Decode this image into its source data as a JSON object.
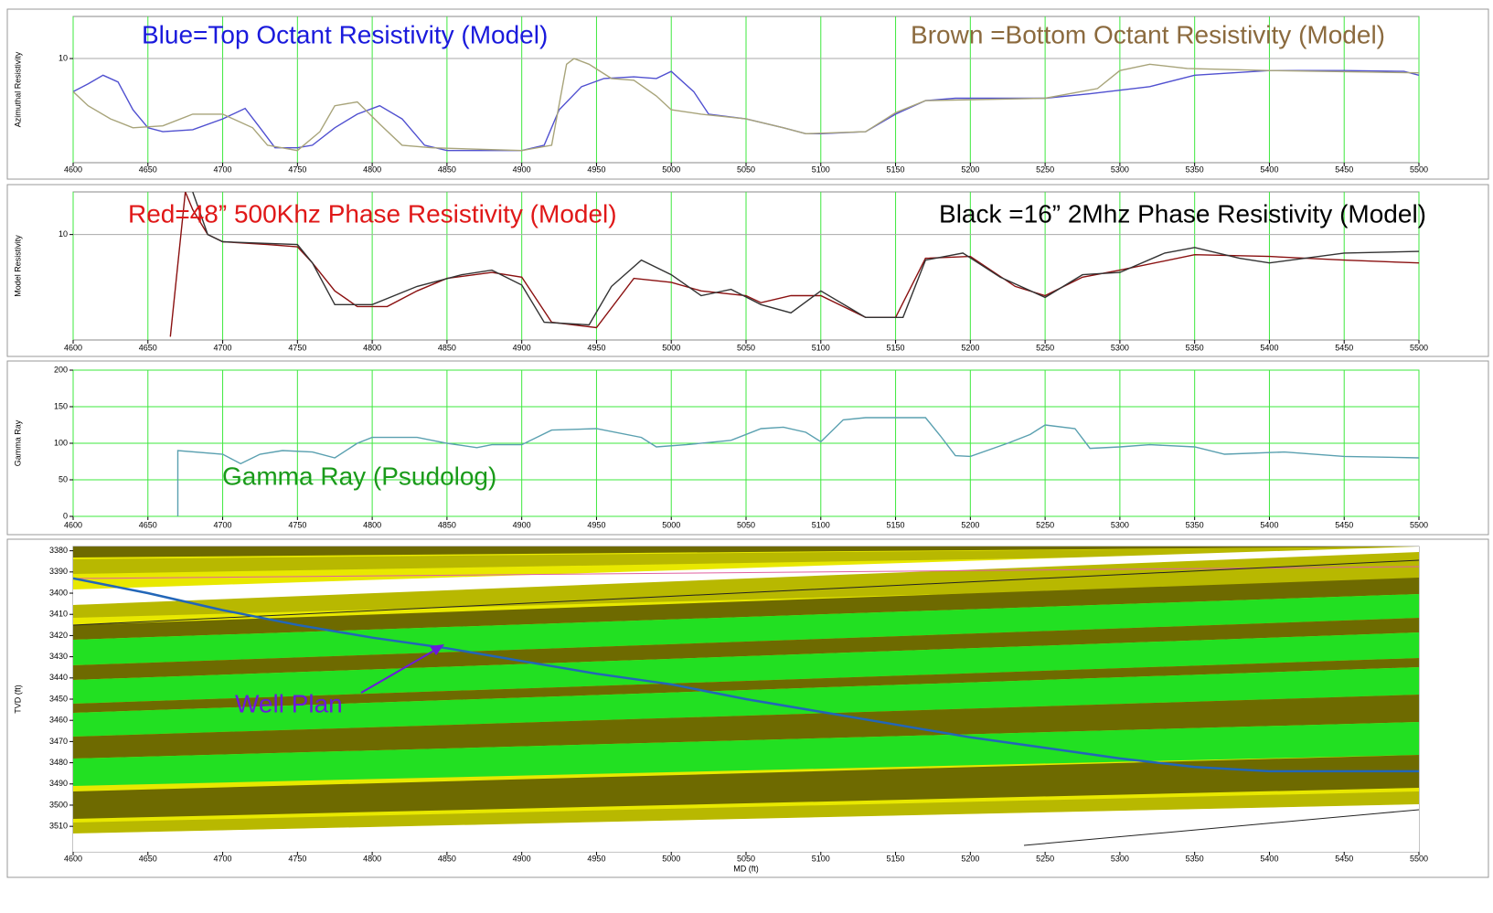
{
  "chart_data": [
    {
      "type": "line",
      "ylabel": "Azimuthal Resistivity",
      "log": true,
      "xlim": [
        4600,
        5500
      ],
      "xticks": [
        4600,
        4650,
        4700,
        4750,
        4800,
        4850,
        4900,
        4950,
        5000,
        5050,
        5100,
        5150,
        5200,
        5250,
        5300,
        5350,
        5400,
        5450,
        5500
      ],
      "ylim": [
        1.8,
        20
      ],
      "yticks": [
        10
      ],
      "annotations": [
        {
          "text": "Blue=Top Octant Resistivity (Model)",
          "color": "#1a1adc"
        },
        {
          "text": "Brown =Bottom Octant Resistivity (Model)",
          "color": "#8b6a3e"
        }
      ],
      "series": [
        {
          "color": "#5050d0",
          "x": [
            4600,
            4610,
            4620,
            4630,
            4640,
            4650,
            4660,
            4680,
            4700,
            4715,
            4725,
            4735,
            4750,
            4760,
            4775,
            4790,
            4805,
            4820,
            4835,
            4850,
            4900,
            4915,
            4925,
            4940,
            4955,
            4975,
            4990,
            5000,
            5015,
            5025,
            5050,
            5075,
            5090,
            5100,
            5130,
            5150,
            5170,
            5190,
            5250,
            5280,
            5320,
            5350,
            5400,
            5450,
            5490,
            5500
          ],
          "values": [
            5.8,
            6.6,
            7.6,
            6.8,
            4.3,
            3.2,
            3.0,
            3.1,
            3.7,
            4.4,
            3.2,
            2.3,
            2.3,
            2.4,
            3.2,
            4.0,
            4.6,
            3.7,
            2.4,
            2.2,
            2.2,
            2.4,
            4.3,
            6.3,
            7.2,
            7.4,
            7.2,
            8.1,
            5.8,
            4.0,
            3.7,
            3.2,
            2.9,
            2.9,
            3.0,
            4.0,
            5.0,
            5.2,
            5.2,
            5.6,
            6.3,
            7.6,
            8.2,
            8.2,
            8.1,
            7.6
          ]
        },
        {
          "color": "#a8a47a",
          "x": [
            4600,
            4610,
            4625,
            4640,
            4660,
            4680,
            4700,
            4720,
            4730,
            4750,
            4765,
            4775,
            4790,
            4805,
            4820,
            4840,
            4900,
            4920,
            4930,
            4935,
            4945,
            4960,
            4975,
            4990,
            5000,
            5020,
            5050,
            5075,
            5090,
            5130,
            5150,
            5170,
            5250,
            5285,
            5300,
            5320,
            5345,
            5400,
            5500
          ],
          "values": [
            5.8,
            4.6,
            3.7,
            3.2,
            3.3,
            4.0,
            4.0,
            3.2,
            2.4,
            2.2,
            3.0,
            4.6,
            4.9,
            3.4,
            2.4,
            2.3,
            2.2,
            2.4,
            9.1,
            10.0,
            9.1,
            7.2,
            7.0,
            5.4,
            4.3,
            4.0,
            3.7,
            3.2,
            2.9,
            3.0,
            4.1,
            5.0,
            5.2,
            6.1,
            8.2,
            9.1,
            8.5,
            8.2,
            7.9
          ]
        }
      ]
    },
    {
      "type": "line",
      "ylabel": "Model Resistivity",
      "log": true,
      "xlim": [
        4600,
        5500
      ],
      "xticks": [
        4600,
        4650,
        4700,
        4750,
        4800,
        4850,
        4900,
        4950,
        5000,
        5050,
        5100,
        5150,
        5200,
        5250,
        5300,
        5350,
        5400,
        5450,
        5500
      ],
      "ylim": [
        1.8,
        20
      ],
      "yticks": [
        10
      ],
      "annotations": [
        {
          "text": "Red=48” 500Khz Phase Resistivity (Model)",
          "color": "#e01818"
        },
        {
          "text": "Black =16” 2Mhz Phase Resistivity (Model)",
          "color": "#000000"
        }
      ],
      "series": [
        {
          "color": "#8a1010",
          "x": [
            4665,
            4675,
            4680,
            4690,
            4700,
            4730,
            4750,
            4760,
            4775,
            4790,
            4810,
            4830,
            4850,
            4880,
            4900,
            4920,
            4950,
            4975,
            5000,
            5020,
            5050,
            5060,
            5080,
            5100,
            5130,
            5150,
            5170,
            5200,
            5230,
            5250,
            5275,
            5300,
            5350,
            5400,
            5450,
            5500
          ],
          "values": [
            1.9,
            20,
            15,
            10,
            8.9,
            8.5,
            8.2,
            6.3,
            4.0,
            3.1,
            3.1,
            4.0,
            4.9,
            5.4,
            5.0,
            2.4,
            2.2,
            4.9,
            4.6,
            4.0,
            3.7,
            3.3,
            3.7,
            3.7,
            2.6,
            2.6,
            6.8,
            7.0,
            4.3,
            3.7,
            5.0,
            5.6,
            7.2,
            7.0,
            6.6,
            6.3
          ]
        },
        {
          "color": "#333333",
          "x": [
            4680,
            4690,
            4700,
            4750,
            4760,
            4775,
            4800,
            4830,
            4860,
            4880,
            4900,
            4915,
            4945,
            4960,
            4980,
            5000,
            5020,
            5040,
            5060,
            5080,
            5100,
            5120,
            5130,
            5155,
            5170,
            5195,
            5220,
            5250,
            5275,
            5300,
            5330,
            5350,
            5380,
            5400,
            5450,
            5500
          ],
          "values": [
            20,
            10,
            8.9,
            8.5,
            6.3,
            3.2,
            3.2,
            4.3,
            5.2,
            5.6,
            4.4,
            2.4,
            2.3,
            4.3,
            6.6,
            5.2,
            3.7,
            4.1,
            3.2,
            2.8,
            4.0,
            3.0,
            2.6,
            2.6,
            6.6,
            7.4,
            5.0,
            3.6,
            5.2,
            5.4,
            7.4,
            8.1,
            6.8,
            6.3,
            7.4,
            7.6
          ]
        }
      ]
    },
    {
      "type": "line",
      "ylabel": "Gamma Ray",
      "log": false,
      "xlim": [
        4600,
        5500
      ],
      "xticks": [
        4600,
        4650,
        4700,
        4750,
        4800,
        4850,
        4900,
        4950,
        5000,
        5050,
        5100,
        5150,
        5200,
        5250,
        5300,
        5350,
        5400,
        5450,
        5500
      ],
      "ylim": [
        0,
        200
      ],
      "yticks": [
        0,
        50,
        100,
        150,
        200
      ],
      "annotations": [
        {
          "text": "Gamma Ray (Psudolog)",
          "color": "#1a9a1a"
        }
      ],
      "series": [
        {
          "color": "#5aa0b0",
          "x": [
            4670,
            4670,
            4700,
            4712,
            4725,
            4740,
            4760,
            4775,
            4790,
            4800,
            4830,
            4850,
            4870,
            4880,
            4900,
            4920,
            4950,
            4980,
            4990,
            5010,
            5040,
            5060,
            5075,
            5090,
            5100,
            5115,
            5130,
            5170,
            5180,
            5190,
            5200,
            5225,
            5240,
            5250,
            5270,
            5280,
            5300,
            5320,
            5350,
            5370,
            5410,
            5450,
            5500
          ],
          "values": [
            0,
            90,
            85,
            72,
            85,
            90,
            88,
            80,
            100,
            108,
            108,
            100,
            94,
            98,
            98,
            118,
            120,
            108,
            95,
            98,
            104,
            120,
            122,
            115,
            102,
            132,
            135,
            135,
            110,
            83,
            82,
            100,
            112,
            125,
            120,
            93,
            95,
            98,
            95,
            85,
            88,
            82,
            80
          ]
        }
      ]
    },
    {
      "type": "line",
      "ylabel": "TVD (ft)",
      "xlabel": "MD (ft)",
      "log": false,
      "y_inverted": true,
      "xlim": [
        4600,
        5500
      ],
      "xticks": [
        4600,
        4650,
        4700,
        4750,
        4800,
        4850,
        4900,
        4950,
        5000,
        5050,
        5100,
        5150,
        5200,
        5250,
        5300,
        5350,
        5400,
        5450,
        5500
      ],
      "ylim": [
        3378,
        3522
      ],
      "yticks": [
        3380,
        3390,
        3400,
        3410,
        3420,
        3430,
        3440,
        3450,
        3460,
        3470,
        3480,
        3490,
        3500,
        3510
      ],
      "annotations": [
        {
          "text": "Well Plan",
          "color": "#6a1adc"
        }
      ],
      "series": [
        {
          "color": "#2266b8",
          "x": [
            4600,
            4650,
            4700,
            4750,
            4800,
            4850,
            4900,
            4950,
            5000,
            5050,
            5100,
            5150,
            5200,
            5250,
            5300,
            5350,
            5400,
            5450,
            5500
          ],
          "values": [
            3393,
            3400,
            3408,
            3415,
            3421,
            3426,
            3432,
            3438,
            3443,
            3450,
            3456,
            3462,
            3468,
            3473,
            3478,
            3482,
            3484,
            3484,
            3484
          ]
        }
      ]
    }
  ]
}
